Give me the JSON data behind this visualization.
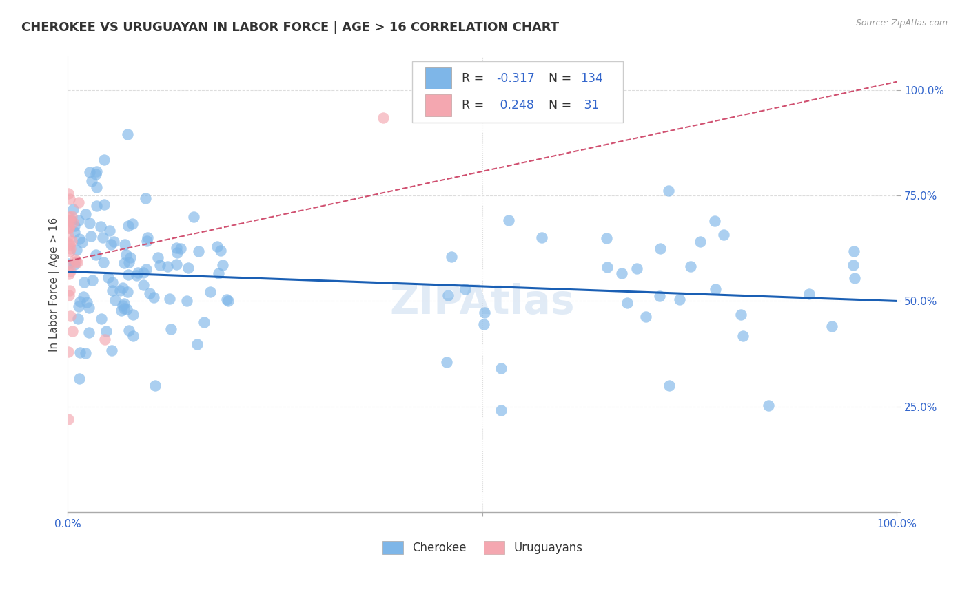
{
  "title": "CHEROKEE VS URUGUAYAN IN LABOR FORCE | AGE > 16 CORRELATION CHART",
  "source": "Source: ZipAtlas.com",
  "ylabel": "In Labor Force | Age > 16",
  "blue_color": "#7EB6E8",
  "pink_color": "#F4A7B0",
  "blue_line_color": "#1A5FB4",
  "pink_line_color": "#D05070",
  "watermark": "ZIPAtlas",
  "blue_line_x0": 0.0,
  "blue_line_y0": 0.57,
  "blue_line_x1": 1.0,
  "blue_line_y1": 0.5,
  "pink_line_x0": 0.0,
  "pink_line_y0": 0.595,
  "pink_line_x1": 1.0,
  "pink_line_y1": 1.02,
  "ylim_min": 0.0,
  "ylim_max": 1.08,
  "xlim_min": 0.0,
  "xlim_max": 1.0,
  "seed_cherokee": 17,
  "seed_uruguayan": 99
}
